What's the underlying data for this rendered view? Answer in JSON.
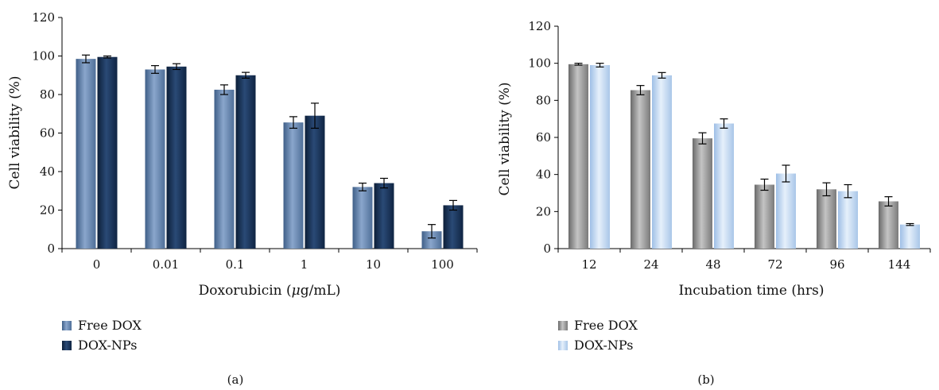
{
  "chart_data": [
    {
      "type": "bar",
      "panel_label": "(a)",
      "xlabel_prefix": "Doxorubicin (",
      "xlabel_mu": "μ",
      "xlabel_suffix": "g/mL)",
      "ylabel": "Cell viability (%)",
      "categories": [
        "0",
        "0.01",
        "0.1",
        "1",
        "10",
        "100"
      ],
      "ylim": [
        0,
        120
      ],
      "yticks": [
        0,
        20,
        40,
        60,
        80,
        100,
        120
      ],
      "grid": false,
      "legend_position": "bottom-left",
      "series": [
        {
          "name": "Free DOX",
          "color": "#6f8fb8",
          "values": [
            98.5,
            93,
            82.5,
            65.5,
            32,
            9
          ],
          "errors": [
            2,
            2,
            2.5,
            3,
            2,
            3.5
          ]
        },
        {
          "name": "DOX-NPs",
          "color": "#1a3358",
          "values": [
            99.5,
            94.5,
            90,
            69,
            34,
            22.5
          ],
          "errors": [
            0.5,
            1.5,
            1.5,
            6.5,
            2.5,
            2.5
          ]
        }
      ]
    },
    {
      "type": "bar",
      "panel_label": "(b)",
      "xlabel": "Incubation time (hrs)",
      "ylabel": "Cell viability (%)",
      "categories": [
        "12",
        "24",
        "48",
        "72",
        "96",
        "144"
      ],
      "ylim": [
        0,
        120
      ],
      "yticks": [
        0,
        20,
        40,
        60,
        80,
        100,
        120
      ],
      "grid": false,
      "legend_position": "bottom-left",
      "series": [
        {
          "name": "Free DOX",
          "color": "#9a9a9a",
          "values": [
            99.5,
            85.5,
            59.5,
            34.5,
            32,
            25.5
          ],
          "errors": [
            0.5,
            2.5,
            3,
            3,
            3.5,
            2.5
          ]
        },
        {
          "name": "DOX-NPs",
          "color": "#bcd4ef",
          "values": [
            99,
            93.5,
            67.5,
            40.5,
            31,
            13
          ],
          "errors": [
            1,
            1.5,
            2.5,
            4.5,
            3.5,
            0.5
          ]
        }
      ]
    }
  ]
}
